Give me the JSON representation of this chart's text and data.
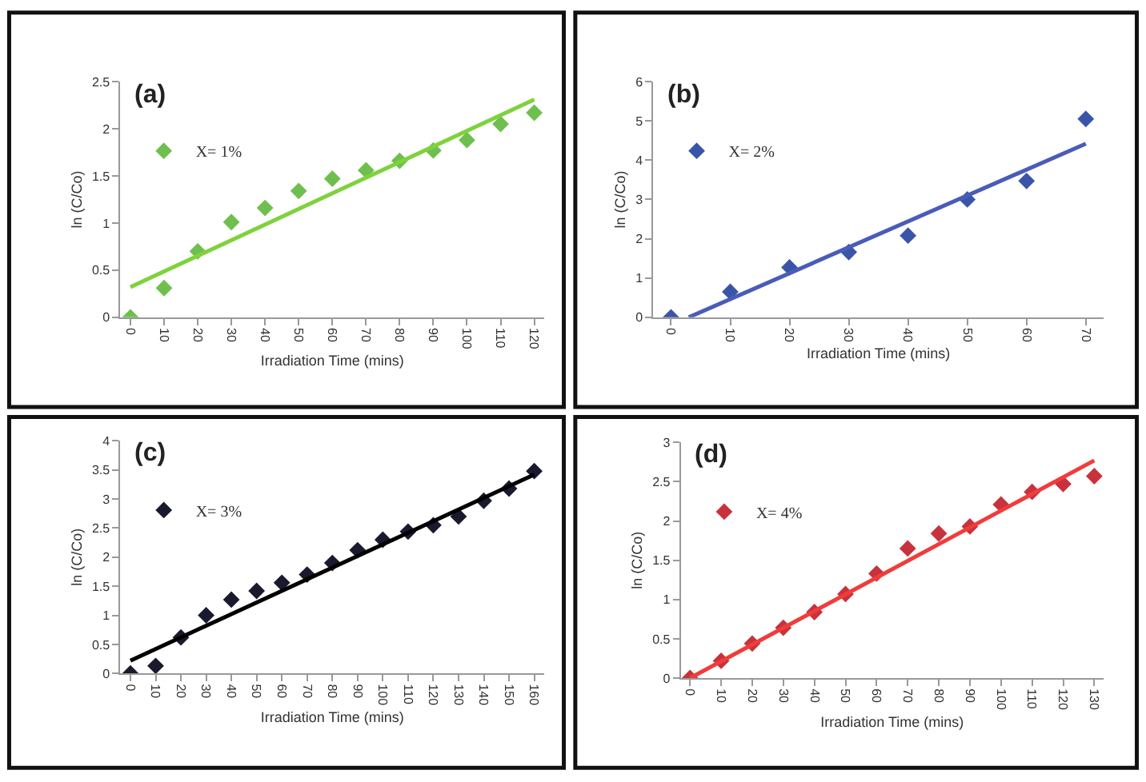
{
  "chart_data": [
    {
      "type": "scatter",
      "xlabel": "Irradiation Time (mins)",
      "ylabel": "ln (C/Co)",
      "annotations": [
        "(a)"
      ],
      "marker": "diamond",
      "legend": "top left",
      "grid": false,
      "xlim": [
        -3,
        123
      ],
      "xticks": [
        0,
        10,
        20,
        30,
        40,
        50,
        60,
        70,
        80,
        90,
        100,
        110,
        120
      ],
      "ylim": [
        0,
        2.5
      ],
      "yticks": [
        0,
        0.5,
        1,
        1.5,
        2,
        2.5
      ],
      "series": [
        {
          "name": "X= 1%",
          "color": "#6fbf4f",
          "x": [
            0,
            10,
            20,
            30,
            40,
            50,
            60,
            70,
            80,
            90,
            100,
            110,
            120
          ],
          "values": [
            0,
            0.31,
            0.7,
            1.01,
            1.16,
            1.34,
            1.47,
            1.56,
            1.66,
            1.77,
            1.88,
            2.05,
            2.17
          ]
        },
        {
          "type": "line",
          "marker": "none",
          "color": "#7ed23c",
          "x": [
            0,
            120
          ],
          "values": [
            0.32,
            2.31
          ]
        }
      ]
    },
    {
      "type": "scatter",
      "xlabel": "Irradiation Time (mins)",
      "ylabel": "ln (C/Co)",
      "annotations": [
        "(b)"
      ],
      "marker": "diamond",
      "legend": "top left",
      "grid": false,
      "xlim": [
        -3,
        73
      ],
      "xticks": [
        0,
        10,
        20,
        30,
        40,
        50,
        60,
        70
      ],
      "ylim": [
        0,
        6
      ],
      "yticks": [
        0,
        1,
        2,
        3,
        4,
        5,
        6
      ],
      "series": [
        {
          "name": "X= 2%",
          "color": "#3a55a8",
          "x": [
            0,
            10,
            20,
            30,
            40,
            50,
            60,
            70
          ],
          "values": [
            0,
            0.65,
            1.27,
            1.66,
            2.08,
            3.0,
            3.47,
            5.05
          ]
        },
        {
          "type": "line",
          "marker": "none",
          "color": "#4a5cb8",
          "x": [
            3,
            70
          ],
          "values": [
            0,
            4.42
          ]
        }
      ]
    },
    {
      "type": "scatter",
      "xlabel": "Irradiation Time (mins)",
      "ylabel": "ln (C/Co)",
      "annotations": [
        "(c)"
      ],
      "marker": "diamond",
      "legend": "top left",
      "grid": false,
      "xlim": [
        -4,
        164
      ],
      "xticks": [
        0,
        10,
        20,
        30,
        40,
        50,
        60,
        70,
        80,
        90,
        100,
        110,
        120,
        130,
        140,
        150,
        160
      ],
      "ylim": [
        0,
        4
      ],
      "yticks": [
        0,
        0.5,
        1,
        1.5,
        2,
        2.5,
        3,
        3.5,
        4
      ],
      "series": [
        {
          "name": "X= 3%",
          "color": "#1a1a2e",
          "x": [
            0,
            10,
            20,
            30,
            40,
            50,
            60,
            70,
            80,
            90,
            100,
            110,
            120,
            130,
            140,
            150,
            160
          ],
          "values": [
            0,
            0.13,
            0.62,
            1.0,
            1.27,
            1.42,
            1.56,
            1.7,
            1.9,
            2.12,
            2.3,
            2.44,
            2.55,
            2.7,
            2.97,
            3.18,
            3.48
          ]
        },
        {
          "type": "line",
          "marker": "none",
          "color": "#000000",
          "x": [
            0,
            160
          ],
          "values": [
            0.22,
            3.42
          ]
        }
      ]
    },
    {
      "type": "scatter",
      "xlabel": "Irradiation Time (mins)",
      "ylabel": "ln (C/Co)",
      "annotations": [
        "(d)"
      ],
      "marker": "diamond",
      "legend": "top left",
      "grid": false,
      "xlim": [
        -3,
        133
      ],
      "xticks": [
        0,
        10,
        20,
        30,
        40,
        50,
        60,
        70,
        80,
        90,
        100,
        110,
        120,
        130
      ],
      "ylim": [
        0,
        3
      ],
      "yticks": [
        0,
        0.5,
        1,
        1.5,
        2,
        2.5,
        3
      ],
      "series": [
        {
          "name": "X= 4%",
          "color": "#c8323c",
          "x": [
            0,
            10,
            20,
            30,
            40,
            50,
            60,
            70,
            80,
            90,
            100,
            110,
            120,
            130
          ],
          "values": [
            0,
            0.22,
            0.44,
            0.64,
            0.84,
            1.07,
            1.33,
            1.65,
            1.84,
            1.93,
            2.21,
            2.37,
            2.47,
            2.57
          ]
        },
        {
          "type": "line",
          "marker": "none",
          "color": "#f03c3c",
          "x": [
            0,
            130
          ],
          "values": [
            0,
            2.77
          ]
        }
      ]
    }
  ]
}
